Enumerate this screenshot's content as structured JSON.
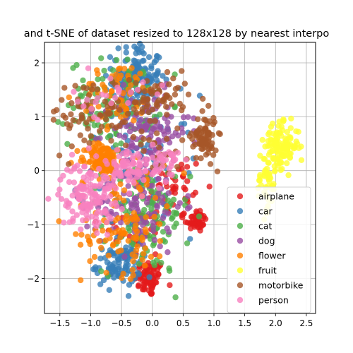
{
  "chart_data": {
    "type": "scatter",
    "title": "and t-SNE of dataset resized to 128x128 by nearest interpo",
    "xlabel": "",
    "ylabel": "",
    "xlim": [
      -1.75,
      2.65
    ],
    "ylim": [
      -2.65,
      2.38
    ],
    "xticks": [
      -1.5,
      -1.0,
      -0.5,
      0.0,
      0.5,
      1.0,
      1.5,
      2.0,
      2.5
    ],
    "xtick_labels": [
      "−1.5",
      "−1.0",
      "−0.5",
      "0.0",
      "0.5",
      "1.0",
      "1.5",
      "2.0",
      "2.5"
    ],
    "yticks": [
      2,
      1,
      0,
      -1,
      -2
    ],
    "ytick_labels": [
      "2",
      "1",
      "0",
      "−1",
      "−2"
    ],
    "grid": true,
    "legend_position": "lower-right",
    "series": [
      {
        "name": "airplane",
        "color": "#e41a1c",
        "clusters": [
          {
            "center": [
              -0.05,
              -2.0
            ],
            "spread": [
              0.12,
              0.17
            ],
            "n": 70
          },
          {
            "center": [
              0.72,
              -0.92
            ],
            "spread": [
              0.08,
              0.11
            ],
            "n": 45
          },
          {
            "center": [
              0.35,
              -0.35
            ],
            "spread": [
              0.25,
              0.35
            ],
            "n": 45
          },
          {
            "center": [
              -0.3,
              -1.2
            ],
            "spread": [
              0.25,
              0.25
            ],
            "n": 30
          }
        ]
      },
      {
        "name": "car",
        "color": "#377eb8",
        "clusters": [
          {
            "center": [
              -0.25,
              1.75
            ],
            "spread": [
              0.2,
              0.3
            ],
            "n": 150
          },
          {
            "center": [
              -0.55,
              -1.75
            ],
            "spread": [
              0.18,
              0.2
            ],
            "n": 90
          },
          {
            "center": [
              -0.2,
              0.1
            ],
            "spread": [
              0.45,
              0.65
            ],
            "n": 90
          }
        ]
      },
      {
        "name": "cat",
        "color": "#4daf4a",
        "clusters": [
          {
            "center": [
              -0.65,
              1.25
            ],
            "spread": [
              0.35,
              0.4
            ],
            "n": 120
          },
          {
            "center": [
              -0.1,
              -0.9
            ],
            "spread": [
              0.35,
              0.5
            ],
            "n": 120
          }
        ]
      },
      {
        "name": "dog",
        "color": "#984ea3",
        "clusters": [
          {
            "center": [
              -0.1,
              0.75
            ],
            "spread": [
              0.35,
              0.35
            ],
            "n": 110
          },
          {
            "center": [
              -0.2,
              -0.6
            ],
            "spread": [
              0.35,
              0.45
            ],
            "n": 110
          }
        ]
      },
      {
        "name": "flower",
        "color": "#ff7f00",
        "clusters": [
          {
            "center": [
              -0.8,
              0.22
            ],
            "spread": [
              0.13,
              0.14
            ],
            "n": 110
          },
          {
            "center": [
              -0.55,
              1.4
            ],
            "spread": [
              0.3,
              0.3
            ],
            "n": 60
          },
          {
            "center": [
              -0.45,
              -1.2
            ],
            "spread": [
              0.35,
              0.35
            ],
            "n": 80
          },
          {
            "center": [
              -0.5,
              -0.2
            ],
            "spread": [
              0.35,
              0.35
            ],
            "n": 40
          }
        ]
      },
      {
        "name": "fruit",
        "color": "#ffff33",
        "clusters": [
          {
            "center": [
              2.1,
              0.45
            ],
            "spread": [
              0.14,
              0.2
            ],
            "n": 120
          },
          {
            "center": [
              1.85,
              -0.2
            ],
            "spread": [
              0.08,
              0.3
            ],
            "n": 45
          }
        ]
      },
      {
        "name": "motorbike",
        "color": "#a65628",
        "clusters": [
          {
            "center": [
              0.85,
              0.62
            ],
            "spread": [
              0.1,
              0.22
            ],
            "n": 75
          },
          {
            "center": [
              0.1,
              1.35
            ],
            "spread": [
              0.25,
              0.2
            ],
            "n": 60
          },
          {
            "center": [
              -0.95,
              1.05
            ],
            "spread": [
              0.35,
              0.35
            ],
            "n": 70
          },
          {
            "center": [
              0.15,
              0.45
            ],
            "spread": [
              0.2,
              0.2
            ],
            "n": 25
          }
        ]
      },
      {
        "name": "person",
        "color": "#f781bf",
        "clusters": [
          {
            "center": [
              -1.05,
              -0.45
            ],
            "spread": [
              0.22,
              0.3
            ],
            "n": 140
          },
          {
            "center": [
              -0.4,
              0.05
            ],
            "spread": [
              0.18,
              0.2
            ],
            "n": 70
          },
          {
            "center": [
              0.25,
              0.15
            ],
            "spread": [
              0.12,
              0.18
            ],
            "n": 35
          },
          {
            "center": [
              -0.7,
              1.35
            ],
            "spread": [
              0.3,
              0.2
            ],
            "n": 25
          }
        ]
      }
    ]
  }
}
